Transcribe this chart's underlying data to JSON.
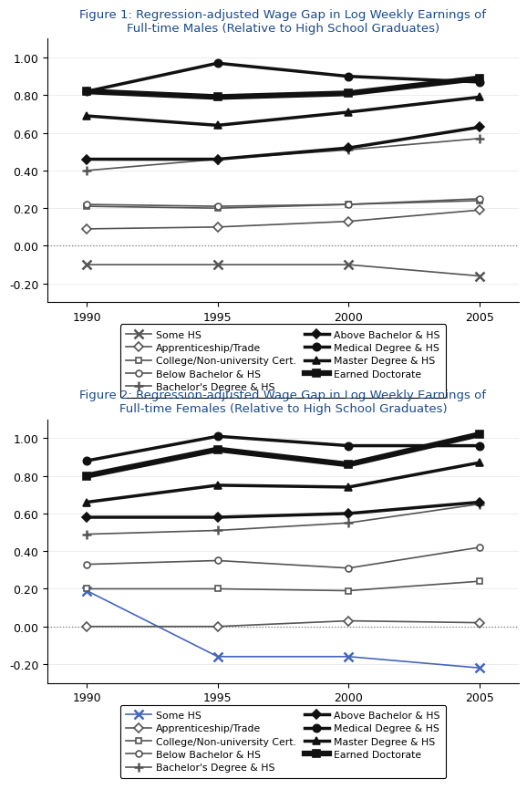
{
  "fig1_title": "Figure 1: Regression-adjusted Wage Gap in Log Weekly Earnings of\nFull-time Males (Relative to High School Graduates)",
  "fig2_title": "Figure 2: Regression-adjusted Wage Gap in Log Weekly Earnings of\nFull-time Females (Relative to High School Graduates)",
  "years": [
    1990,
    1995,
    2000,
    2005
  ],
  "fig1_series": {
    "Some HS": [
      -0.1,
      -0.1,
      -0.1,
      -0.16
    ],
    "College/Non-university Cert.": [
      0.21,
      0.2,
      0.22,
      0.24
    ],
    "Bachelor's Degree & HS": [
      0.4,
      0.46,
      0.51,
      0.57
    ],
    "Medical Degree & HS": [
      0.82,
      0.97,
      0.9,
      0.87
    ],
    "Earned Doctorate": [
      0.82,
      0.79,
      0.81,
      0.89
    ],
    "Apprenticeship/Trade": [
      0.09,
      0.1,
      0.13,
      0.19
    ],
    "Below Bachelor & HS": [
      0.22,
      0.21,
      0.22,
      0.25
    ],
    "Above Bachelor & HS": [
      0.46,
      0.46,
      0.52,
      0.63
    ],
    "Master Degree & HS": [
      0.69,
      0.64,
      0.71,
      0.79
    ]
  },
  "fig2_series": {
    "Some HS": [
      0.19,
      -0.16,
      -0.16,
      -0.22
    ],
    "College/Non-university Cert.": [
      0.2,
      0.2,
      0.19,
      0.24
    ],
    "Bachelor's Degree & HS": [
      0.49,
      0.51,
      0.55,
      0.65
    ],
    "Medical Degree & HS": [
      0.88,
      1.01,
      0.96,
      0.96
    ],
    "Earned Doctorate": [
      0.8,
      0.94,
      0.86,
      1.02
    ],
    "Apprenticeship/Trade": [
      0.0,
      0.0,
      0.03,
      0.02
    ],
    "Below Bachelor & HS": [
      0.33,
      0.35,
      0.31,
      0.42
    ],
    "Above Bachelor & HS": [
      0.58,
      0.58,
      0.6,
      0.66
    ],
    "Master Degree & HS": [
      0.66,
      0.75,
      0.74,
      0.87
    ]
  },
  "series_styles": {
    "Some HS": {
      "marker": "x",
      "lw": 1.2,
      "color": "#555555",
      "ms": 7,
      "mew": 1.8,
      "mfc": "none"
    },
    "College/Non-university Cert.": {
      "marker": "s",
      "lw": 1.2,
      "color": "#555555",
      "ms": 5,
      "mew": 1.2,
      "mfc": "white"
    },
    "Bachelor's Degree & HS": {
      "marker": "+",
      "lw": 1.2,
      "color": "#555555",
      "ms": 7,
      "mew": 1.8,
      "mfc": "none"
    },
    "Medical Degree & HS": {
      "marker": "o",
      "lw": 2.5,
      "color": "#111111",
      "ms": 6,
      "mew": 1.2,
      "mfc": "#111111"
    },
    "Earned Doctorate": {
      "marker": "s",
      "lw": 4.5,
      "color": "#111111",
      "ms": 6,
      "mew": 1.2,
      "mfc": "#111111"
    },
    "Apprenticeship/Trade": {
      "marker": "D",
      "lw": 1.2,
      "color": "#555555",
      "ms": 5,
      "mew": 1.2,
      "mfc": "white"
    },
    "Below Bachelor & HS": {
      "marker": "o",
      "lw": 1.2,
      "color": "#555555",
      "ms": 5,
      "mew": 1.2,
      "mfc": "white"
    },
    "Above Bachelor & HS": {
      "marker": "D",
      "lw": 2.5,
      "color": "#111111",
      "ms": 5,
      "mew": 1.2,
      "mfc": "#111111"
    },
    "Master Degree & HS": {
      "marker": "^",
      "lw": 2.5,
      "color": "#111111",
      "ms": 6,
      "mew": 1.2,
      "mfc": "#111111"
    }
  },
  "legend_col1": [
    "Some HS",
    "College/Non-university Cert.",
    "Bachelor's Degree & HS",
    "Medical Degree & HS",
    "Earned Doctorate"
  ],
  "legend_col2": [
    "Apprenticeship/Trade",
    "Below Bachelor & HS",
    "Above Bachelor & HS",
    "Master Degree & HS"
  ],
  "ylim": [
    -0.3,
    1.1
  ],
  "yticks": [
    -0.2,
    0.0,
    0.2,
    0.4,
    0.6,
    0.8,
    1.0
  ],
  "xticks": [
    1990,
    1995,
    2000,
    2005
  ],
  "title_color": "#1a4a8a",
  "fig2_some_hs_color": "#4466bb"
}
